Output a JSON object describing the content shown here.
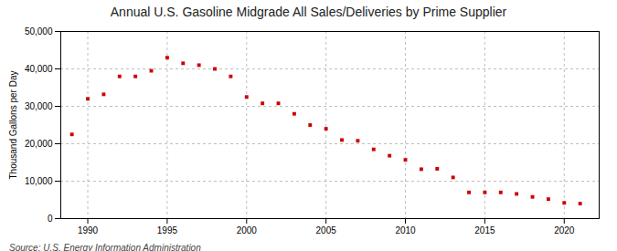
{
  "chart_data": {
    "type": "scatter",
    "title": "Annual U.S. Gasoline Midgrade All Sales/Deliveries by Prime Supplier",
    "ylabel": "Thousand Gallons per Day",
    "source": "Source: U.S. Energy Information Administration",
    "x": [
      1989,
      1990,
      1991,
      1992,
      1993,
      1994,
      1995,
      1996,
      1997,
      1998,
      1999,
      2000,
      2001,
      2002,
      2003,
      2004,
      2005,
      2006,
      2007,
      2008,
      2009,
      2010,
      2011,
      2012,
      2013,
      2014,
      2015,
      2016,
      2017,
      2018,
      2019,
      2020,
      2021
    ],
    "values": [
      22500,
      32000,
      33200,
      38000,
      38000,
      39500,
      43000,
      41500,
      41000,
      40000,
      38000,
      32500,
      30800,
      30800,
      28000,
      25000,
      24000,
      21000,
      20800,
      18500,
      16800,
      15700,
      13200,
      13300,
      11000,
      7000,
      7000,
      7000,
      6600,
      5800,
      5200,
      4200,
      4000
    ],
    "color": "#cc0000",
    "marker": "square",
    "xlim": [
      1988.3,
      2022.2
    ],
    "xticks": [
      1990,
      1995,
      2000,
      2005,
      2010,
      2015,
      2020
    ],
    "ylim": [
      0,
      50000
    ],
    "yticks": [
      0,
      {
        "value": 10000,
        "label": "10,000"
      },
      {
        "value": 20000,
        "label": "20,000"
      },
      {
        "value": 30000,
        "label": "30,000"
      },
      {
        "value": 40000,
        "label": "40,000"
      },
      {
        "value": 50000,
        "label": "50,000"
      }
    ],
    "grid": true
  }
}
